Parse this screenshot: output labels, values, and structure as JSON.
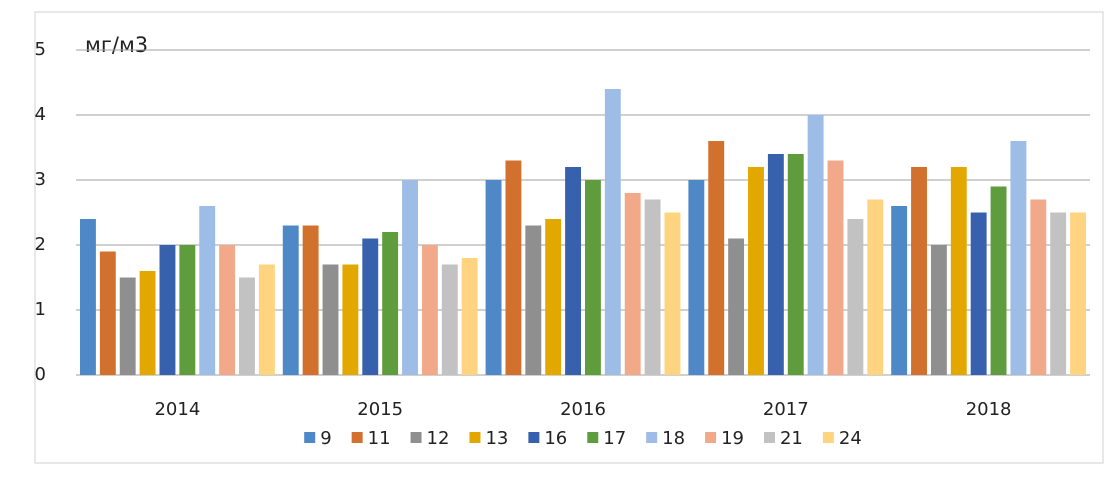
{
  "chart_data": {
    "type": "bar",
    "y_label": "мг/м3",
    "categories": [
      "2014",
      "2015",
      "2016",
      "2017",
      "2018"
    ],
    "series": [
      {
        "name": "9",
        "color": "#4f88c6",
        "values": [
          2.4,
          2.3,
          3.0,
          3.0,
          2.6
        ]
      },
      {
        "name": "11",
        "color": "#d2702e",
        "values": [
          1.9,
          2.3,
          3.3,
          3.6,
          3.2
        ]
      },
      {
        "name": "12",
        "color": "#8f8f8f",
        "values": [
          1.5,
          1.7,
          2.3,
          2.1,
          2.0
        ]
      },
      {
        "name": "13",
        "color": "#e3a800",
        "values": [
          1.6,
          1.7,
          2.4,
          3.2,
          3.2
        ]
      },
      {
        "name": "16",
        "color": "#3861ad",
        "values": [
          2.0,
          2.1,
          3.2,
          3.4,
          2.5
        ]
      },
      {
        "name": "17",
        "color": "#5e9c3d",
        "values": [
          2.0,
          2.2,
          3.0,
          3.4,
          2.9
        ]
      },
      {
        "name": "18",
        "color": "#9dbde6",
        "values": [
          2.6,
          3.0,
          4.4,
          4.0,
          3.6
        ]
      },
      {
        "name": "19",
        "color": "#f2a98a",
        "values": [
          2.0,
          2.0,
          2.8,
          3.3,
          2.7
        ]
      },
      {
        "name": "21",
        "color": "#c2c2c2",
        "values": [
          1.5,
          1.7,
          2.7,
          2.4,
          2.5
        ]
      },
      {
        "name": "24",
        "color": "#ffd480",
        "values": [
          1.7,
          1.8,
          2.5,
          2.7,
          2.5
        ]
      }
    ],
    "ylim": [
      0,
      5
    ],
    "yticks": [
      0,
      1,
      2,
      3,
      4,
      5
    ],
    "grid": true,
    "legend": "bottom"
  }
}
